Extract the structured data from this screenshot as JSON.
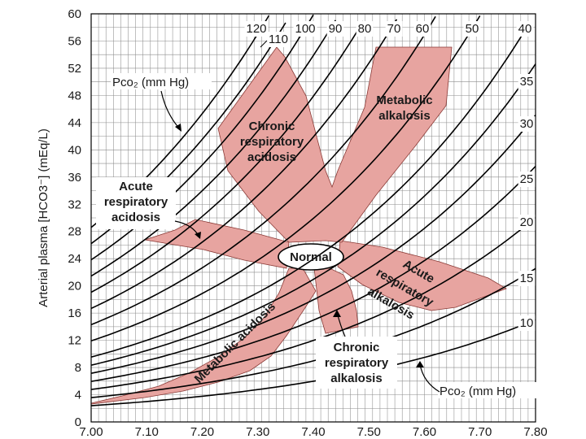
{
  "chart_data": {
    "type": "line",
    "title": "",
    "xlabel": "",
    "ylabel": "Arterial plasma [HCO3⁻] (mEq/L)",
    "xlim": [
      7.0,
      7.8
    ],
    "ylim": [
      0,
      60
    ],
    "x_ticks": [
      "7.00",
      "7.10",
      "7.20",
      "7.30",
      "7.40",
      "7.50",
      "7.60",
      "7.70",
      "7.80"
    ],
    "y_ticks": [
      "0",
      "4",
      "8",
      "12",
      "16",
      "20",
      "24",
      "28",
      "32",
      "36",
      "40",
      "44",
      "48",
      "52",
      "56",
      "60"
    ],
    "grid": true,
    "isopleth_label_top": "Pco₂ (mm Hg)",
    "isopleth_label_bottom": "Pco₂ (mm Hg)",
    "isopleths": [
      {
        "pco2": 120,
        "label": "120"
      },
      {
        "pco2": 110,
        "label": "110"
      },
      {
        "pco2": 100,
        "label": "100"
      },
      {
        "pco2": 90,
        "label": "90"
      },
      {
        "pco2": 80,
        "label": "80"
      },
      {
        "pco2": 70,
        "label": "70"
      },
      {
        "pco2": 60,
        "label": "60"
      },
      {
        "pco2": 50,
        "label": "50"
      },
      {
        "pco2": 40,
        "label": "40"
      },
      {
        "pco2": 35,
        "label": "35"
      },
      {
        "pco2": 30,
        "label": "30"
      },
      {
        "pco2": 25,
        "label": "25"
      },
      {
        "pco2": 20,
        "label": "20"
      },
      {
        "pco2": 15,
        "label": "15"
      },
      {
        "pco2": 10,
        "label": "10"
      }
    ],
    "regions": [
      {
        "name": "normal",
        "label_lines": [
          "Normal"
        ],
        "fill": "#ffffff"
      },
      {
        "name": "chronic-respiratory-acidosis",
        "label_lines": [
          "Chronic",
          "respiratory",
          "acidosis"
        ],
        "fill": "#e7a4a0"
      },
      {
        "name": "metabolic-alkalosis",
        "label_lines": [
          "Metabolic",
          "alkalosis"
        ],
        "fill": "#e7a4a0"
      },
      {
        "name": "acute-respiratory-acidosis",
        "label_lines": [
          "Acute",
          "respiratory",
          "acidosis"
        ],
        "fill": "#e7a4a0"
      },
      {
        "name": "acute-respiratory-alkalosis",
        "label_lines": [
          "Acute",
          "respiratory",
          "alkalosis"
        ],
        "fill": "#e7a4a0"
      },
      {
        "name": "metabolic-acidosis",
        "label_lines": [
          "Metabolic acidosis"
        ],
        "fill": "#e7a4a0"
      },
      {
        "name": "chronic-respiratory-alkalosis",
        "label_lines": [
          "Chronic",
          "respiratory",
          "alkalosis"
        ],
        "fill": "#e7a4a0"
      }
    ],
    "colors": {
      "region_fill": "#e7a4a0",
      "region_stroke": "#8a3a36",
      "grid": "#8c8c8c",
      "lines": "#000000"
    }
  }
}
